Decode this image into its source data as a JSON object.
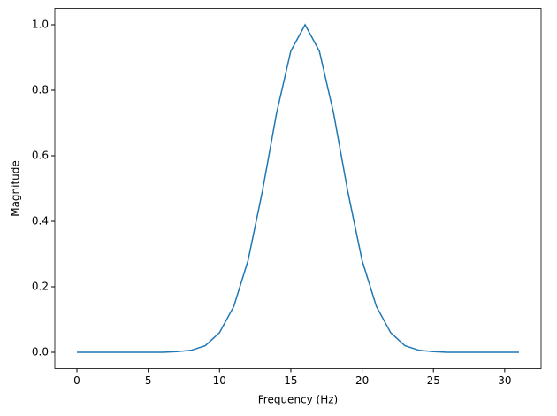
{
  "chart_data": {
    "type": "line",
    "x_label": "Frequency (Hz)",
    "y_label": "Magnitude",
    "x": [
      0,
      1,
      2,
      3,
      4,
      5,
      6,
      7,
      8,
      9,
      10,
      11,
      12,
      13,
      14,
      15,
      16,
      17,
      18,
      19,
      20,
      21,
      22,
      23,
      24,
      25,
      26,
      27,
      28,
      29,
      30,
      31
    ],
    "series": [
      {
        "color": "#1f77b4",
        "values": [
          0,
          0,
          0,
          0,
          0,
          0,
          0,
          0.002,
          0.006,
          0.02,
          0.06,
          0.14,
          0.28,
          0.49,
          0.73,
          0.92,
          1.0,
          0.92,
          0.73,
          0.49,
          0.28,
          0.14,
          0.06,
          0.02,
          0.006,
          0.002,
          0,
          0,
          0,
          0,
          0,
          0
        ]
      }
    ],
    "xlim": [
      -1.55,
      32.55
    ],
    "xticks": [
      0,
      5,
      10,
      15,
      20,
      25,
      30
    ],
    "ylim": [
      -0.05,
      1.05
    ],
    "yticks": [
      {
        "value": 0,
        "label": "0.0"
      },
      {
        "value": 0.2,
        "label": "0.2"
      },
      {
        "value": 0.4,
        "label": "0.4"
      },
      {
        "value": 0.6,
        "label": "0.6"
      },
      {
        "value": 0.8,
        "label": "0.8"
      },
      {
        "value": 1,
        "label": "1.0"
      }
    ]
  }
}
